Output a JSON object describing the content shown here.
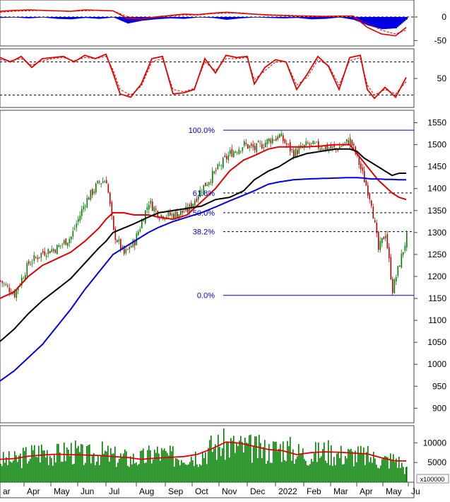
{
  "chart_data": [
    {
      "type": "area",
      "panel": "MACD",
      "y_ticks": [
        "0",
        "-50"
      ],
      "y_tick_values": [
        0,
        -50
      ],
      "ylim": [
        -60,
        30
      ],
      "x": [
        0,
        20,
        40,
        60,
        80,
        100,
        120,
        140,
        160,
        180,
        200,
        220,
        240,
        260,
        280,
        300,
        320,
        340,
        360,
        380,
        400,
        420,
        440,
        460,
        480,
        500,
        520,
        540,
        560,
        575
      ],
      "series": [
        {
          "values": [
            -2,
            -1,
            -3,
            -1,
            -4,
            -5,
            -2,
            -4,
            -1,
            -14,
            -8,
            -5,
            -3,
            -4,
            -1,
            -2,
            -6,
            -3,
            -1,
            -2,
            -3,
            -2,
            -5,
            -4,
            -1,
            -6,
            -18,
            -26,
            -24,
            -5
          ]
        },
        {
          "values": [
            12,
            14,
            15,
            14,
            13,
            12,
            15,
            14,
            13,
            -3,
            -4,
            0,
            3,
            6,
            5,
            8,
            10,
            8,
            6,
            4,
            3,
            2,
            2,
            1,
            2,
            2,
            -22,
            -36,
            -40,
            -22
          ]
        },
        {
          "values": [
            10,
            12,
            13,
            14,
            13,
            12,
            13,
            14,
            13,
            1,
            -5,
            -1,
            2,
            4,
            4,
            7,
            8,
            9,
            6,
            5,
            4,
            3,
            2,
            2,
            2,
            1,
            -14,
            -28,
            -36,
            -28
          ]
        }
      ]
    },
    {
      "type": "line",
      "panel": "Stochastic",
      "y_ticks": [
        "50"
      ],
      "y_tick_values": [
        50
      ],
      "ylim": [
        0,
        100
      ],
      "reference_lines": [
        80,
        20
      ],
      "x": [
        0,
        15,
        30,
        45,
        60,
        75,
        90,
        105,
        120,
        135,
        150,
        160,
        170,
        185,
        200,
        215,
        230,
        245,
        260,
        275,
        290,
        305,
        320,
        335,
        350,
        360,
        375,
        390,
        405,
        420,
        435,
        450,
        465,
        480,
        495,
        510,
        520,
        530,
        545,
        560,
        575
      ],
      "series": [
        {
          "values": [
            88,
            80,
            90,
            70,
            86,
            88,
            90,
            80,
            92,
            86,
            94,
            60,
            22,
            16,
            40,
            86,
            90,
            22,
            24,
            30,
            86,
            60,
            92,
            88,
            90,
            40,
            70,
            84,
            80,
            30,
            58,
            90,
            72,
            30,
            88,
            92,
            30,
            14,
            34,
            16,
            52
          ]
        },
        {
          "values": [
            84,
            82,
            86,
            74,
            82,
            86,
            88,
            82,
            88,
            86,
            90,
            66,
            30,
            20,
            36,
            80,
            86,
            30,
            26,
            32,
            80,
            64,
            86,
            86,
            88,
            48,
            64,
            80,
            80,
            38,
            52,
            84,
            74,
            38,
            82,
            88,
            38,
            20,
            30,
            22,
            44
          ]
        }
      ]
    },
    {
      "type": "bar",
      "panel": "Price",
      "title": "",
      "y_ticks": [
        "1550",
        "1500",
        "1450",
        "1400",
        "1350",
        "1300",
        "1250",
        "1200",
        "1150",
        "1100",
        "1050",
        "1000",
        "950",
        "900"
      ],
      "ylim": [
        870,
        1575
      ],
      "fibonacci": {
        "levels": [
          {
            "label": "100.0%",
            "value": 1533
          },
          {
            "label": "61.8%",
            "value": 1390
          },
          {
            "label": "50.0%",
            "value": 1345
          },
          {
            "label": "38.2%",
            "value": 1302
          },
          {
            "label": "0.0%",
            "value": 1157
          }
        ]
      },
      "x": [
        0,
        20,
        40,
        60,
        80,
        100,
        120,
        140,
        150,
        160,
        175,
        190,
        210,
        225,
        245,
        265,
        285,
        305,
        325,
        345,
        360,
        380,
        395,
        415,
        435,
        455,
        475,
        495,
        505,
        515,
        525,
        535,
        545,
        555,
        565,
        575
      ],
      "close": [
        1190,
        1160,
        1230,
        1255,
        1265,
        1290,
        1370,
        1415,
        1420,
        1300,
        1250,
        1280,
        1370,
        1340,
        1340,
        1350,
        1400,
        1440,
        1480,
        1500,
        1490,
        1510,
        1520,
        1480,
        1500,
        1495,
        1490,
        1510,
        1470,
        1420,
        1370,
        1260,
        1300,
        1170,
        1230,
        1290
      ],
      "series": [
        {
          "name": "",
          "color": "#e00000",
          "values": [
            1150,
            1165,
            1200,
            1225,
            1240,
            1255,
            1280,
            1310,
            1330,
            1345,
            1345,
            1340,
            1340,
            1335,
            1330,
            1340,
            1370,
            1400,
            1440,
            1465,
            1475,
            1490,
            1495,
            1495,
            1495,
            1497,
            1500,
            1500,
            1480,
            1460,
            1440,
            1420,
            1405,
            1390,
            1380,
            1375
          ]
        },
        {
          "name": "",
          "color": "#000000",
          "values": [
            1052,
            1080,
            1115,
            1145,
            1170,
            1195,
            1230,
            1265,
            1280,
            1300,
            1310,
            1320,
            1335,
            1345,
            1350,
            1355,
            1360,
            1375,
            1380,
            1395,
            1420,
            1440,
            1450,
            1470,
            1480,
            1485,
            1490,
            1490,
            1485,
            1470,
            1460,
            1450,
            1440,
            1430,
            1435,
            1435
          ]
        },
        {
          "name": "",
          "color": "#0000e0",
          "values": [
            962,
            985,
            1015,
            1045,
            1085,
            1125,
            1170,
            1210,
            1230,
            1250,
            1265,
            1280,
            1300,
            1312,
            1325,
            1335,
            1345,
            1358,
            1372,
            1385,
            1395,
            1410,
            1415,
            1420,
            1422,
            1423,
            1424,
            1425,
            1425,
            1424,
            1422,
            1422,
            1421,
            1421,
            1420,
            1420
          ]
        }
      ]
    },
    {
      "type": "bar",
      "panel": "Volume",
      "y_ticks": [
        "10000",
        "5000"
      ],
      "unit_label": "x100000",
      "ylim": [
        0,
        14000
      ],
      "x": [
        0,
        20,
        40,
        60,
        80,
        100,
        120,
        140,
        160,
        180,
        200,
        220,
        240,
        260,
        280,
        300,
        320,
        340,
        360,
        380,
        400,
        420,
        440,
        460,
        480,
        500,
        520,
        540,
        560,
        575
      ],
      "values": [
        5500,
        5600,
        7000,
        8000,
        7000,
        8000,
        6500,
        7500,
        6500,
        6000,
        6000,
        7500,
        6500,
        7000,
        7000,
        9000,
        9500,
        9000,
        8500,
        8000,
        9000,
        7500,
        7000,
        8000,
        7000,
        7000,
        6500,
        5500,
        6000,
        3000
      ],
      "series": [
        {
          "name": "",
          "color": "#e00000",
          "values": [
            5800,
            6000,
            6600,
            6900,
            7100,
            7000,
            6900,
            6800,
            6500,
            6300,
            5800,
            6100,
            6300,
            6500,
            7100,
            8500,
            10200,
            9900,
            9100,
            8300,
            8000,
            7000,
            7500,
            7700,
            7600,
            7400,
            7200,
            6200,
            5400,
            5400
          ]
        }
      ]
    },
    {
      "type": "line",
      "panel": "x-axis",
      "categories": [
        "ar",
        "Apr",
        "May",
        "Jun",
        "Jul",
        "Aug",
        "Sep",
        "Oct",
        "Nov",
        "Dec",
        "2022",
        "Feb",
        "Mar",
        "Apr",
        "May",
        "Ju"
      ]
    }
  ]
}
